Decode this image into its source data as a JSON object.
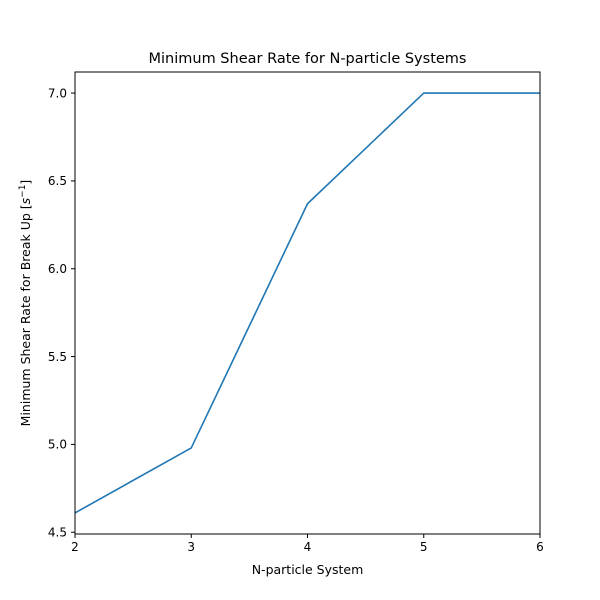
{
  "chart_data": {
    "type": "line",
    "title": "Minimum Shear Rate for N-particle Systems",
    "xlabel": "N-particle System",
    "ylabel": {
      "text": "Minimum Shear Rate for Break Up [",
      "unit_base": "s",
      "unit_exponent": "−1",
      "close": "]"
    },
    "xlim": [
      2,
      6
    ],
    "ylim": [
      4.49,
      7.12
    ],
    "x_ticks": [
      {
        "value": 2,
        "label": "2"
      },
      {
        "value": 3,
        "label": "3"
      },
      {
        "value": 4,
        "label": "4"
      },
      {
        "value": 5,
        "label": "5"
      },
      {
        "value": 6,
        "label": "6"
      }
    ],
    "y_ticks": [
      {
        "value": 4.5,
        "label": "4.5"
      },
      {
        "value": 5.0,
        "label": "5.0"
      },
      {
        "value": 5.5,
        "label": "5.5"
      },
      {
        "value": 6.0,
        "label": "6.0"
      },
      {
        "value": 6.5,
        "label": "6.5"
      },
      {
        "value": 7.0,
        "label": "7.0"
      }
    ],
    "grid": false,
    "legend": "none",
    "series": [
      {
        "color": "#1f77b4",
        "x": [
          2,
          3,
          4,
          5,
          6
        ],
        "y": [
          4.61,
          4.98,
          6.37,
          7.0,
          7.0
        ]
      }
    ]
  }
}
